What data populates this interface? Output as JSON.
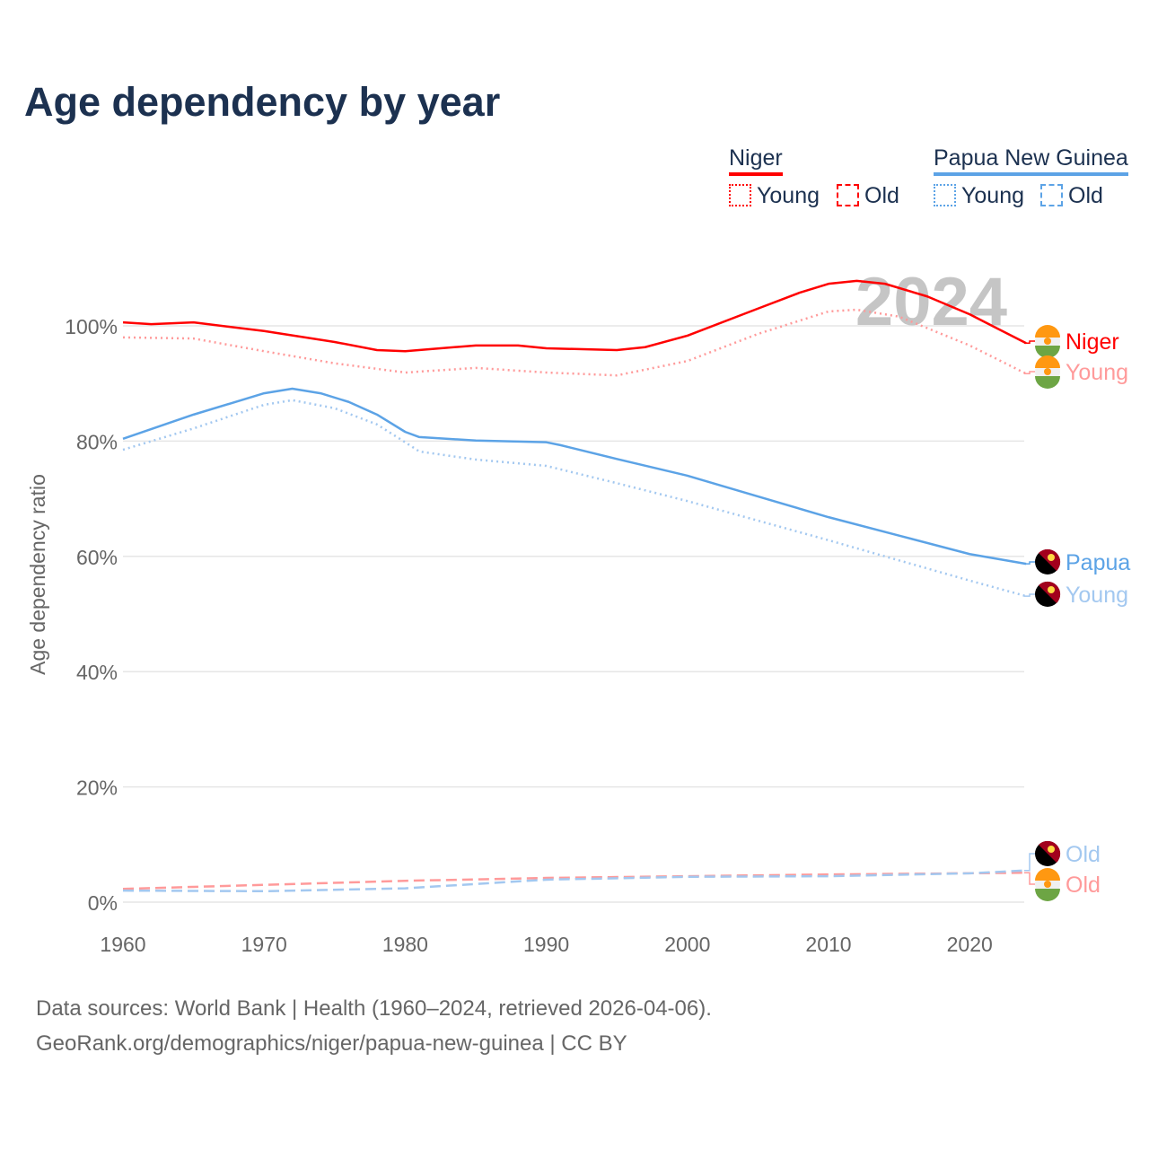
{
  "title": "Age dependency by year",
  "legend": {
    "groups": [
      {
        "name": "Niger",
        "color": "#ff0000",
        "items": [
          "Young",
          "Old"
        ]
      },
      {
        "name": "Papua New Guinea",
        "color": "#5ca3e6",
        "items": [
          "Young",
          "Old"
        ]
      }
    ]
  },
  "watermark_year": "2024",
  "sources": [
    "Data sources: World Bank | Health (1960–2024, retrieved 2026-04-06).",
    "GeoRank.org/demographics/niger/papua-new-guinea | CC BY"
  ],
  "chart_data": {
    "type": "line",
    "title": "Age dependency by year",
    "xlabel": "",
    "ylabel": "Age dependency ratio",
    "xlim": [
      1960,
      2024
    ],
    "ylim": [
      0,
      110
    ],
    "xticks": [
      "1960",
      "1970",
      "1980",
      "1990",
      "2000",
      "2010",
      "2020"
    ],
    "yticks": [
      "0%",
      "20%",
      "40%",
      "60%",
      "80%",
      "100%"
    ],
    "series": [
      {
        "name": "Niger",
        "label": "Niger",
        "color": "#ff0000",
        "dash": "solid",
        "x": [
          1960,
          1962,
          1965,
          1970,
          1975,
          1978,
          1980,
          1985,
          1988,
          1990,
          1995,
          1997,
          2000,
          2005,
          2008,
          2010,
          2012,
          2014,
          2017,
          2020,
          2022,
          2024
        ],
        "y": [
          100.6,
          100.3,
          100.6,
          99.1,
          97.2,
          95.8,
          95.6,
          96.6,
          96.6,
          96.1,
          95.8,
          96.3,
          98.3,
          103,
          105.8,
          107.3,
          107.8,
          107.3,
          105.1,
          102,
          99.5,
          97.0
        ]
      },
      {
        "name": "Niger Young",
        "label": "Young",
        "color": "#ff9a9a",
        "dash": "dotted",
        "x": [
          1960,
          1965,
          1970,
          1975,
          1980,
          1985,
          1990,
          1995,
          2000,
          2005,
          2010,
          2012,
          2015,
          2020,
          2024
        ],
        "y": [
          98,
          97.8,
          95.6,
          93.5,
          91.9,
          92.7,
          91.9,
          91.4,
          93.9,
          98.6,
          102.5,
          102.8,
          101.6,
          96.6,
          91.7
        ]
      },
      {
        "name": "Niger Old",
        "label": "Old",
        "color": "#ff9a9a",
        "dash": "dashed",
        "x": [
          1960,
          1970,
          1980,
          1990,
          2000,
          2010,
          2024
        ],
        "y": [
          2.3,
          3.0,
          3.7,
          4.2,
          4.5,
          4.8,
          5.1
        ]
      },
      {
        "name": "Papua New Guinea",
        "label": "Papua",
        "color": "#5ca3e6",
        "dash": "solid",
        "x": [
          1960,
          1965,
          1970,
          1972,
          1974,
          1976,
          1978,
          1980,
          1981,
          1985,
          1990,
          1991,
          1995,
          2000,
          2005,
          2010,
          2015,
          2020,
          2024
        ],
        "y": [
          80.4,
          84.6,
          88.3,
          89.1,
          88.3,
          86.8,
          84.6,
          81.6,
          80.7,
          80.1,
          79.8,
          79.3,
          76.9,
          74,
          70.4,
          66.8,
          63.6,
          60.4,
          58.7
        ]
      },
      {
        "name": "Papua New Guinea Young",
        "label": "Young",
        "color": "#a3c8f0",
        "dash": "dotted",
        "x": [
          1960,
          1965,
          1970,
          1972,
          1975,
          1978,
          1980,
          1981,
          1985,
          1990,
          1995,
          2000,
          2005,
          2010,
          2015,
          2020,
          2024
        ],
        "y": [
          78.5,
          82.2,
          86.3,
          87.1,
          85.7,
          82.9,
          79.8,
          78.2,
          76.8,
          75.7,
          72.7,
          69.6,
          66.2,
          62.8,
          59.3,
          55.8,
          53.1
        ]
      },
      {
        "name": "Papua New Guinea Old",
        "label": "Old",
        "color": "#a3c8f0",
        "dash": "dashed",
        "x": [
          1960,
          1970,
          1980,
          1990,
          2000,
          2010,
          2020,
          2024
        ],
        "y": [
          2.0,
          1.9,
          2.4,
          3.9,
          4.4,
          4.5,
          5.0,
          5.5
        ]
      }
    ]
  }
}
